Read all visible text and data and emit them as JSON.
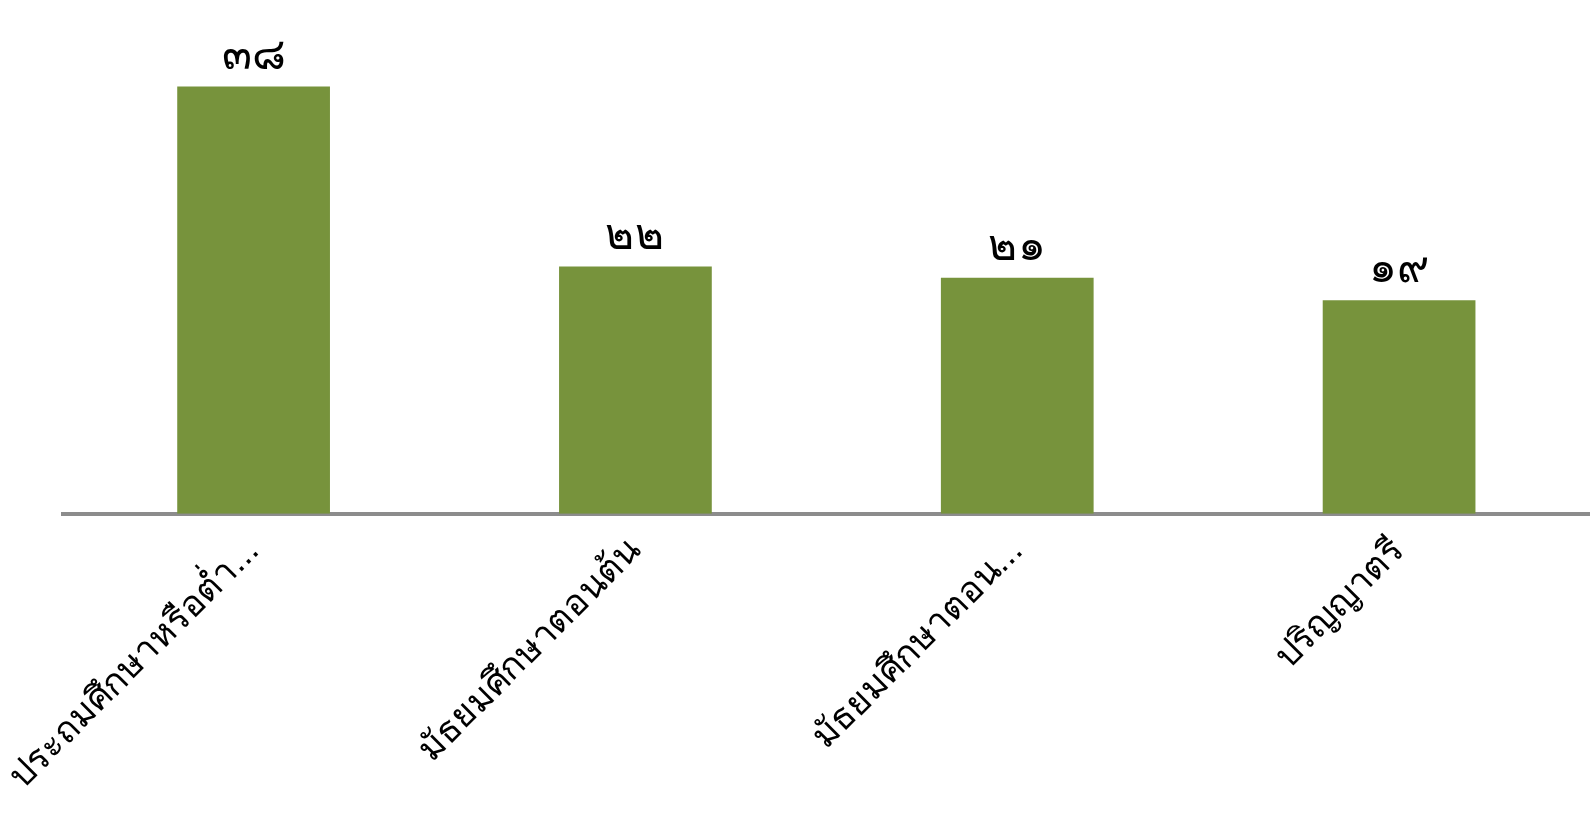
{
  "chart_data": {
    "type": "bar",
    "categories": [
      "ประถมศึกษาหรือต่ำ...",
      "มัธยมศึกษาตอนต้น",
      "มัธยมศึกษาตอน...",
      "ปริญญาตรี"
    ],
    "values": [
      38,
      22,
      21,
      19
    ],
    "color": "#77933c",
    "value_labels": [
      "๓๘",
      "๒๒",
      "๒๑",
      "๑๙"
    ],
    "tick_labels": "x",
    "grid": false,
    "legend": false
  }
}
